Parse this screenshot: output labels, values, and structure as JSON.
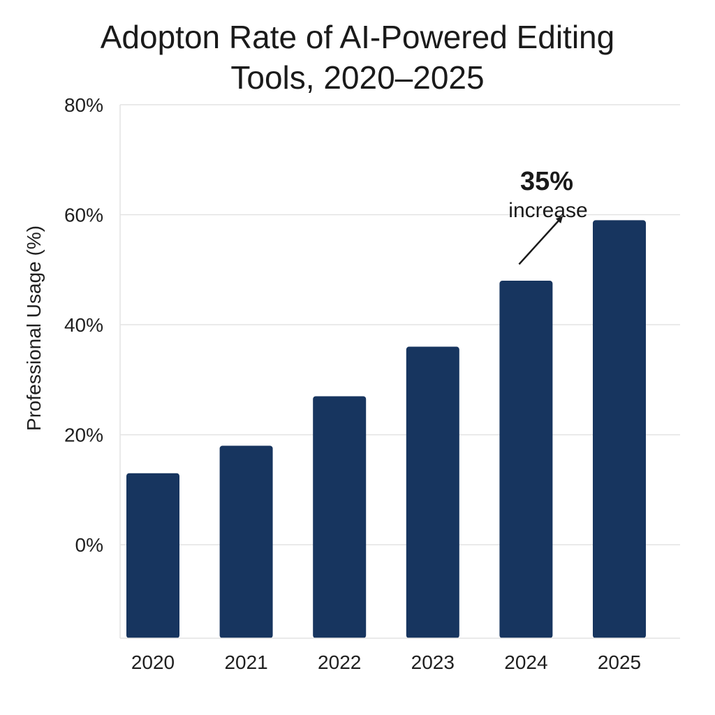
{
  "chart_data": {
    "type": "bar",
    "title_line1": "Adopton Rate of AI-Powered Editing",
    "title_line2": "Tools, 2020–2025",
    "xlabel": "",
    "ylabel": "Professional Usage (%)",
    "categories": [
      "2020",
      "2021",
      "2022",
      "2023",
      "2024",
      "2025"
    ],
    "values": [
      13,
      18,
      27,
      36,
      48,
      59
    ],
    "y_ticks": [
      0,
      20,
      40,
      60,
      80
    ],
    "y_tick_labels": [
      "0%",
      "20%",
      "40%",
      "60%",
      "80%"
    ],
    "ylim": [
      -17,
      80
    ],
    "grid": true,
    "bar_color": "#17355f",
    "grid_color": "#e3e3e3",
    "annotation": {
      "value_text": "35%",
      "label_text": "increase",
      "arrow_from": [
        "2024",
        51
      ],
      "arrow_to": [
        "2024",
        60
      ]
    }
  }
}
